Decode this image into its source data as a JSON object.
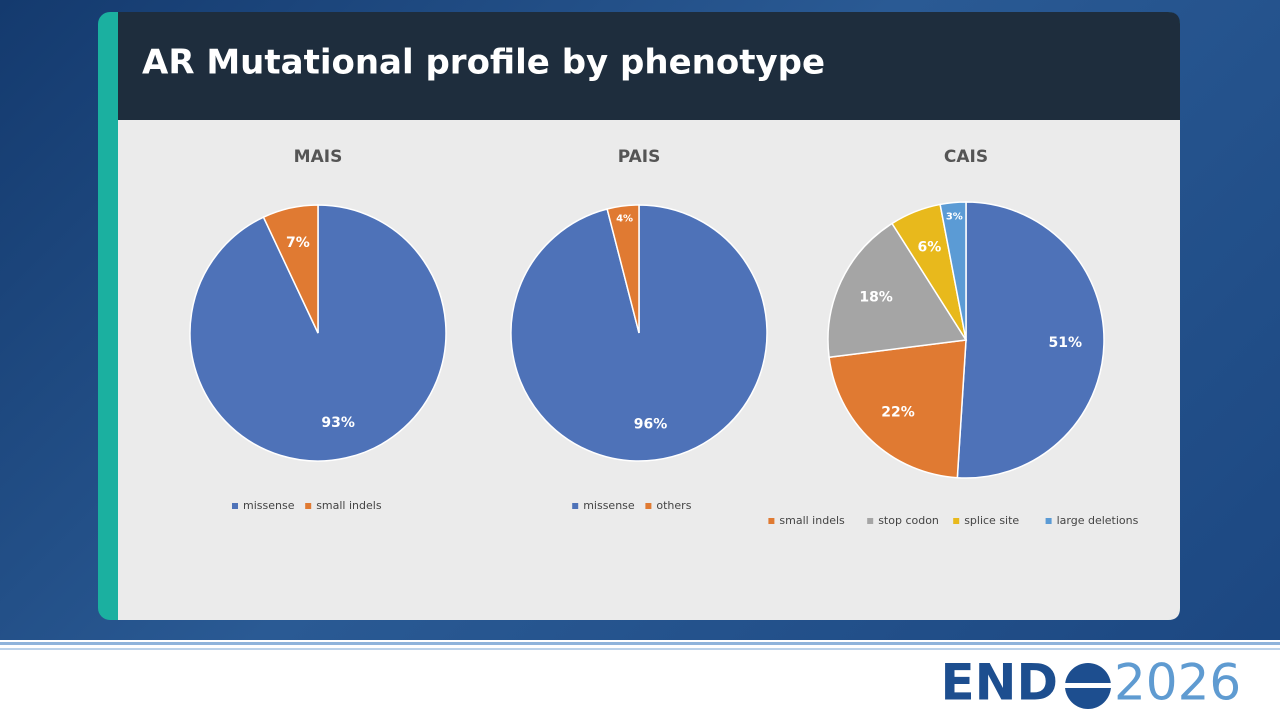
{
  "title": "AR Mutational profile by phenotype",
  "logo": {
    "left": "END",
    "right": "2026"
  },
  "chart_data": [
    {
      "type": "pie",
      "title": "MAIS",
      "categories": [
        "missense",
        "small indels"
      ],
      "values": [
        93,
        7
      ],
      "value_labels": [
        "93%",
        "7%"
      ],
      "colors": [
        "#4e72b8",
        "#e07a32"
      ]
    },
    {
      "type": "pie",
      "title": "PAIS",
      "categories": [
        "missense",
        "others"
      ],
      "values": [
        96,
        4
      ],
      "value_labels": [
        "96%",
        "4%"
      ],
      "colors": [
        "#4e72b8",
        "#e07a32"
      ]
    },
    {
      "type": "pie",
      "title": "CAIS",
      "categories": [
        null,
        "small indels",
        "stop codon",
        "splice site",
        "large deletions"
      ],
      "values": [
        51,
        22,
        18,
        6,
        3
      ],
      "value_labels": [
        "51%",
        "22%",
        "18%",
        "6%",
        "3%"
      ],
      "colors": [
        "#4e72b8",
        "#e07a32",
        "#a5a5a5",
        "#e8b91c",
        "#5b9bd5"
      ]
    }
  ]
}
